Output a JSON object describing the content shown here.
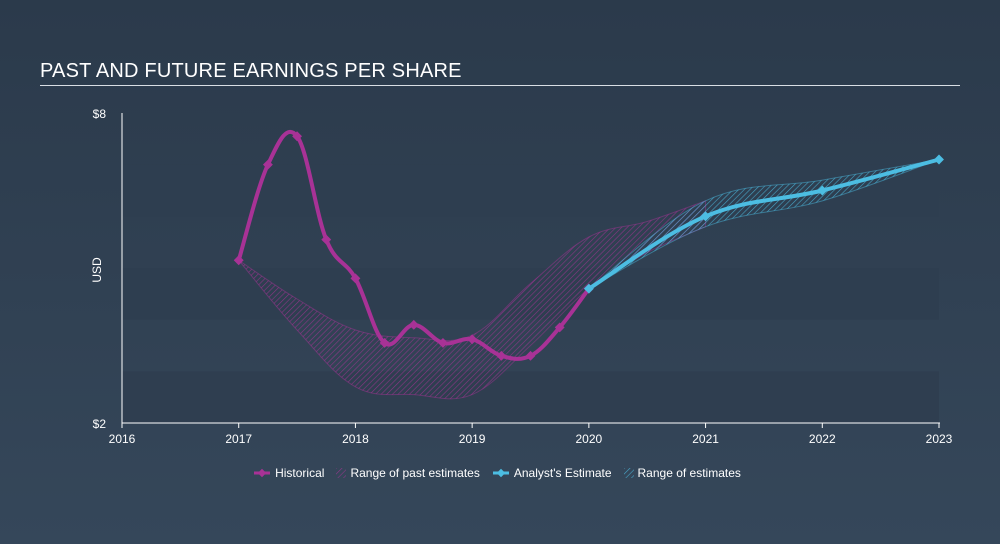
{
  "title": "PAST AND FUTURE EARNINGS PER SHARE",
  "colors": {
    "historical": "#a83296",
    "estimate": "#4cbde2",
    "axis": "#ffffff",
    "band": "#2f3e50"
  },
  "chart_data": {
    "type": "line",
    "title": "PAST AND FUTURE EARNINGS PER SHARE",
    "ylabel": "USD",
    "xlabel": "",
    "ylim": [
      2,
      8
    ],
    "xlim": [
      2016,
      2023
    ],
    "y_tick_labels": [
      "$8",
      "$2"
    ],
    "x_ticks": [
      2016,
      2017,
      2018,
      2019,
      2020,
      2021,
      2022,
      2023
    ],
    "x_tick_labels": [
      "2016",
      "2017",
      "2018",
      "2019",
      "2020",
      "2021",
      "2022",
      "2023"
    ],
    "legend_position": "bottom",
    "series": [
      {
        "name": "Historical",
        "x": [
          2017.0,
          2017.25,
          2017.5,
          2017.75,
          2018.0,
          2018.25,
          2018.5,
          2018.75,
          2019.0,
          2019.25,
          2019.5,
          2019.75,
          2020.0
        ],
        "y": [
          5.15,
          7.0,
          7.55,
          5.55,
          4.8,
          3.55,
          3.9,
          3.55,
          3.62,
          3.3,
          3.3,
          3.85,
          4.6
        ]
      },
      {
        "name": "Analyst's Estimate",
        "x": [
          2020.0,
          2021.0,
          2022.0,
          2023.0
        ],
        "y": [
          4.6,
          6.0,
          6.5,
          7.1
        ]
      }
    ],
    "ranges": [
      {
        "name": "Range of past estimates",
        "x": [
          2017.0,
          2017.5,
          2018.0,
          2018.5,
          2019.0,
          2019.5,
          2020.0,
          2020.5,
          2021.0
        ],
        "low": [
          5.15,
          3.8,
          2.7,
          2.55,
          2.55,
          3.5,
          4.6,
          5.3,
          5.8
        ],
        "high": [
          5.15,
          4.4,
          3.8,
          3.65,
          3.7,
          4.7,
          5.6,
          5.9,
          6.3
        ]
      },
      {
        "name": "Range of estimates",
        "x": [
          2020.0,
          2021.0,
          2022.0,
          2023.0
        ],
        "low": [
          4.6,
          5.8,
          6.3,
          7.1
        ],
        "high": [
          4.6,
          6.3,
          6.7,
          7.1
        ]
      }
    ]
  },
  "legend": {
    "historical": "Historical",
    "past_range": "Range of past estimates",
    "estimate": "Analyst's Estimate",
    "estimate_range": "Range of estimates"
  }
}
